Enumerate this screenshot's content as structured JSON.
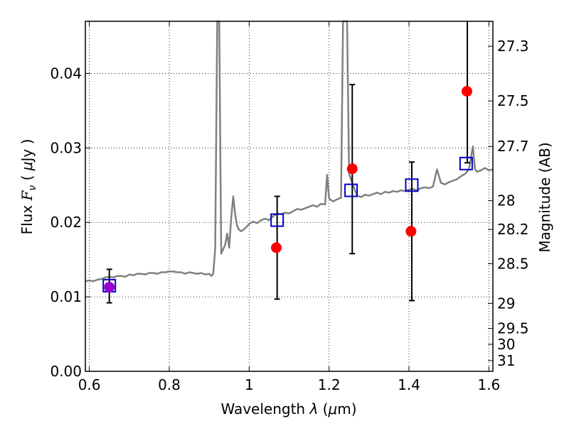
{
  "chart_data": {
    "type": "scatter",
    "title": "",
    "xlabel": "Wavelength  λ (μm)",
    "ylabel": "Flux  F_ν  ( μJy )",
    "ylabel_parts": {
      "prefix": "Flux  ",
      "var": "F",
      "sub": "ν",
      "unit_open": "  ( ",
      "mu": "μ",
      "unit_rest": "Jy )"
    },
    "xlabel_parts": {
      "prefix": "Wavelength  ",
      "var": "λ",
      "unit": " (",
      "mu": "μ",
      "unit_rest": "m)"
    },
    "y2label": "Magnitude (AB)",
    "xlim": [
      0.59,
      1.61
    ],
    "ylim": [
      0.0,
      0.047
    ],
    "grid": true,
    "x_ticks": [
      0.6,
      0.8,
      1.0,
      1.2,
      1.4,
      1.6
    ],
    "x_tick_labels": [
      "0.6",
      "0.8",
      "1",
      "1.2",
      "1.4",
      "1.6"
    ],
    "y_ticks": [
      0.0,
      0.01,
      0.02,
      0.03,
      0.04
    ],
    "y_tick_labels": [
      "0.00",
      "0.01",
      "0.02",
      "0.03",
      "0.04"
    ],
    "mag_ticks": [
      27.3,
      27.5,
      27.7,
      28,
      28.2,
      28.5,
      29,
      29.5,
      30,
      31
    ],
    "mag_tick_labels": [
      "27.3",
      "27.5",
      "27.7",
      "28",
      "28.2",
      "28.5",
      "29",
      "29.5",
      "30",
      "31"
    ],
    "colors": {
      "spectrum": "#808080",
      "observed": "#ff0000",
      "model": "#0000cc",
      "errorbar": "#000000",
      "overlap": "#9900cc"
    },
    "series": [
      {
        "kind": "line",
        "points": [
          [
            0.59,
            0.0121
          ],
          [
            0.6,
            0.0122
          ],
          [
            0.61,
            0.0121
          ],
          [
            0.62,
            0.0123
          ],
          [
            0.63,
            0.0124
          ],
          [
            0.64,
            0.0126
          ],
          [
            0.65,
            0.0127
          ],
          [
            0.66,
            0.0126
          ],
          [
            0.67,
            0.0128
          ],
          [
            0.68,
            0.0128
          ],
          [
            0.69,
            0.0127
          ],
          [
            0.7,
            0.013
          ],
          [
            0.71,
            0.0129
          ],
          [
            0.72,
            0.0131
          ],
          [
            0.73,
            0.0131
          ],
          [
            0.74,
            0.013
          ],
          [
            0.75,
            0.0132
          ],
          [
            0.76,
            0.0132
          ],
          [
            0.77,
            0.0131
          ],
          [
            0.78,
            0.0133
          ],
          [
            0.79,
            0.0133
          ],
          [
            0.8,
            0.0134
          ],
          [
            0.81,
            0.0134
          ],
          [
            0.82,
            0.0133
          ],
          [
            0.83,
            0.0133
          ],
          [
            0.84,
            0.0131
          ],
          [
            0.85,
            0.0133
          ],
          [
            0.86,
            0.0132
          ],
          [
            0.87,
            0.0131
          ],
          [
            0.88,
            0.0132
          ],
          [
            0.89,
            0.013
          ],
          [
            0.9,
            0.0131
          ],
          [
            0.905,
            0.0128
          ],
          [
            0.91,
            0.0131
          ],
          [
            0.915,
            0.0165
          ],
          [
            0.92,
            0.047
          ],
          [
            0.925,
            0.047
          ],
          [
            0.93,
            0.0158
          ],
          [
            0.94,
            0.017
          ],
          [
            0.945,
            0.0185
          ],
          [
            0.95,
            0.0166
          ],
          [
            0.955,
            0.0205
          ],
          [
            0.96,
            0.0235
          ],
          [
            0.965,
            0.021
          ],
          [
            0.97,
            0.0195
          ],
          [
            0.975,
            0.019
          ],
          [
            0.98,
            0.0188
          ],
          [
            0.99,
            0.0192
          ],
          [
            1.0,
            0.0198
          ],
          [
            1.01,
            0.0201
          ],
          [
            1.02,
            0.0199
          ],
          [
            1.03,
            0.0203
          ],
          [
            1.04,
            0.0205
          ],
          [
            1.05,
            0.0203
          ],
          [
            1.06,
            0.0208
          ],
          [
            1.07,
            0.0212
          ],
          [
            1.08,
            0.0211
          ],
          [
            1.09,
            0.0213
          ],
          [
            1.1,
            0.0212
          ],
          [
            1.11,
            0.0215
          ],
          [
            1.12,
            0.0218
          ],
          [
            1.13,
            0.0217
          ],
          [
            1.14,
            0.0219
          ],
          [
            1.15,
            0.0221
          ],
          [
            1.16,
            0.0223
          ],
          [
            1.17,
            0.0221
          ],
          [
            1.18,
            0.0225
          ],
          [
            1.19,
            0.0224
          ],
          [
            1.195,
            0.0264
          ],
          [
            1.2,
            0.0232
          ],
          [
            1.21,
            0.0228
          ],
          [
            1.22,
            0.0231
          ],
          [
            1.23,
            0.0233
          ],
          [
            1.235,
            0.047
          ],
          [
            1.245,
            0.047
          ],
          [
            1.25,
            0.0265
          ],
          [
            1.26,
            0.025
          ],
          [
            1.27,
            0.0236
          ],
          [
            1.28,
            0.0234
          ],
          [
            1.29,
            0.0237
          ],
          [
            1.3,
            0.0236
          ],
          [
            1.31,
            0.0238
          ],
          [
            1.32,
            0.024
          ],
          [
            1.33,
            0.0238
          ],
          [
            1.34,
            0.0241
          ],
          [
            1.35,
            0.024
          ],
          [
            1.36,
            0.0242
          ],
          [
            1.37,
            0.0241
          ],
          [
            1.38,
            0.0243
          ],
          [
            1.39,
            0.0242
          ],
          [
            1.4,
            0.0244
          ],
          [
            1.41,
            0.0245
          ],
          [
            1.42,
            0.0243
          ],
          [
            1.43,
            0.0246
          ],
          [
            1.44,
            0.0247
          ],
          [
            1.45,
            0.0246
          ],
          [
            1.46,
            0.0248
          ],
          [
            1.47,
            0.0271
          ],
          [
            1.48,
            0.0253
          ],
          [
            1.49,
            0.0251
          ],
          [
            1.5,
            0.0254
          ],
          [
            1.51,
            0.0256
          ],
          [
            1.52,
            0.0258
          ],
          [
            1.53,
            0.0262
          ],
          [
            1.54,
            0.0265
          ],
          [
            1.55,
            0.0271
          ],
          [
            1.56,
            0.0302
          ],
          [
            1.565,
            0.0272
          ],
          [
            1.57,
            0.0268
          ],
          [
            1.58,
            0.027
          ],
          [
            1.59,
            0.0273
          ],
          [
            1.6,
            0.027
          ],
          [
            1.61,
            0.0271
          ]
        ]
      },
      {
        "kind": "scatter",
        "marker": "circle",
        "points": [
          {
            "x": 0.65,
            "y": 0.0113
          },
          {
            "x": 1.068,
            "y": 0.0166
          },
          {
            "x": 1.258,
            "y": 0.0272
          },
          {
            "x": 1.405,
            "y": 0.0188
          },
          {
            "x": 1.545,
            "y": 0.0376
          }
        ]
      },
      {
        "kind": "scatter",
        "marker": "square",
        "points": [
          {
            "x": 0.65,
            "y": 0.0115
          },
          {
            "x": 1.07,
            "y": 0.0203
          },
          {
            "x": 1.255,
            "y": 0.0243
          },
          {
            "x": 1.407,
            "y": 0.025
          },
          {
            "x": 1.543,
            "y": 0.0279
          }
        ]
      },
      {
        "kind": "errorbar",
        "points": [
          {
            "x": 0.65,
            "low": 0.0092,
            "high": 0.0137
          },
          {
            "x": 1.07,
            "low": 0.0097,
            "high": 0.0235
          },
          {
            "x": 1.258,
            "low": 0.0158,
            "high": 0.0385
          },
          {
            "x": 1.407,
            "low": 0.0095,
            "high": 0.0281
          },
          {
            "x": 1.546,
            "low": 0.028,
            "high": 0.047
          }
        ]
      }
    ]
  }
}
